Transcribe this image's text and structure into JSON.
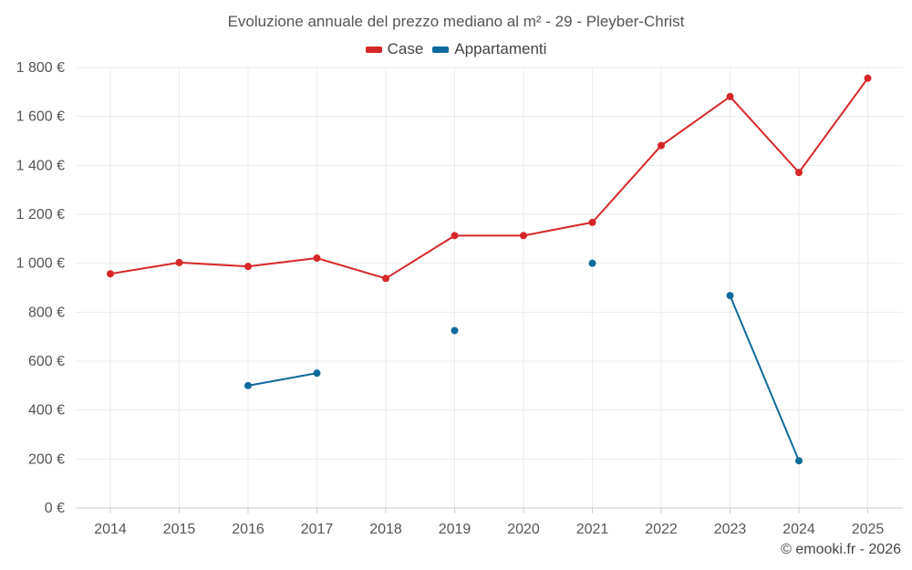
{
  "chart_data": {
    "type": "line",
    "title": "Evoluzione annuale del prezzo mediano al m² - 29 - Pleyber-Christ",
    "categories": [
      "2014",
      "2015",
      "2016",
      "2017",
      "2018",
      "2019",
      "2020",
      "2021",
      "2022",
      "2023",
      "2024",
      "2025"
    ],
    "series": [
      {
        "name": "Case",
        "color": "#d62728",
        "values": [
          957,
          1003,
          987,
          1021,
          938,
          1113,
          1113,
          1167,
          1481,
          1681,
          1371,
          1756
        ]
      },
      {
        "name": "Appartamenti",
        "color": "#0f6a9c",
        "values": [
          null,
          null,
          500,
          551,
          null,
          725,
          null,
          1000,
          null,
          868,
          193,
          null
        ]
      }
    ],
    "y_ticks": [
      {
        "value": 0,
        "label": "0 €"
      },
      {
        "value": 200,
        "label": "200 €"
      },
      {
        "value": 400,
        "label": "400 €"
      },
      {
        "value": 600,
        "label": "600 €"
      },
      {
        "value": 800,
        "label": "800 €"
      },
      {
        "value": 1000,
        "label": "1 000 €"
      },
      {
        "value": 1200,
        "label": "1 200 €"
      },
      {
        "value": 1400,
        "label": "1 400 €"
      },
      {
        "value": 1600,
        "label": "1 600 €"
      },
      {
        "value": 1800,
        "label": "1 800 €"
      }
    ],
    "ylim": [
      0,
      1800
    ],
    "xlabel": "",
    "ylabel": "",
    "grid": true,
    "legend_position": "top-center"
  },
  "credit": "© emooki.fr - 2026"
}
